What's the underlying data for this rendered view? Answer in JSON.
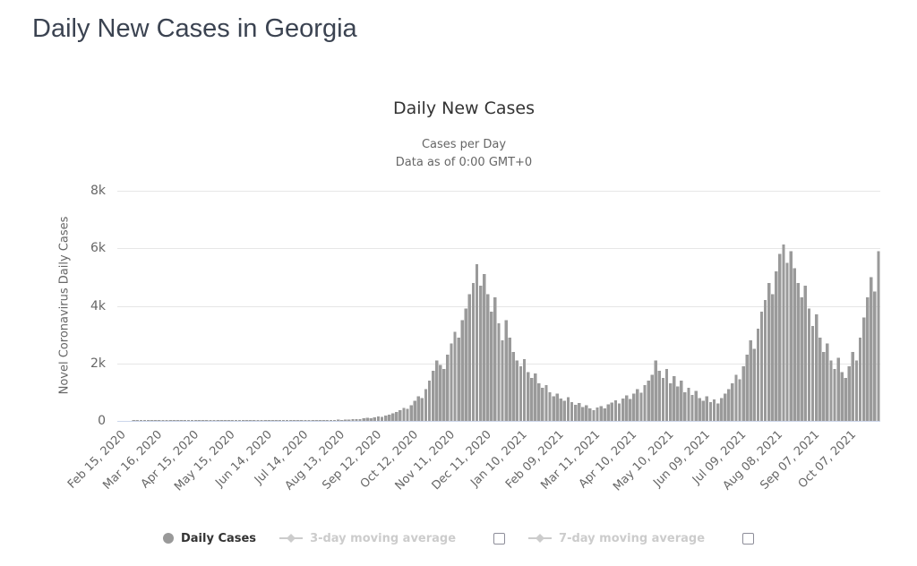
{
  "page": {
    "title": "Daily New Cases in Georgia"
  },
  "chart_data": {
    "type": "bar",
    "title": "Daily New Cases",
    "subtitle1": "Cases per Day",
    "subtitle2": "Data as of 0:00 GMT+0",
    "ylabel": "Novel Coronavirus Daily Cases",
    "series_name": "Daily Cases",
    "ylim": [
      0,
      8000
    ],
    "ytick_values": [
      0,
      2000,
      4000,
      6000,
      8000
    ],
    "ytick_labels": [
      "0",
      "2k",
      "4k",
      "6k",
      "8k"
    ],
    "x_start_date": "Feb 15, 2020",
    "sample_interval_days": 3,
    "xtick_every_n_samples": 10,
    "xtick_labels": [
      "Feb 15, 2020",
      "Mar 16, 2020",
      "Apr 15, 2020",
      "May 15, 2020",
      "Jun 14, 2020",
      "Jul 14, 2020",
      "Aug 13, 2020",
      "Sep 12, 2020",
      "Oct 12, 2020",
      "Nov 11, 2020",
      "Dec 11, 2020",
      "Jan 10, 2021",
      "Feb 09, 2021",
      "Mar 11, 2021",
      "Apr 10, 2021",
      "May 10, 2021",
      "Jun 09, 2021",
      "Jul 09, 2021",
      "Aug 08, 2021",
      "Sep 07, 2021",
      "Oct 07, 2021"
    ],
    "colors": {
      "bar": "#9a9a9a",
      "grid": "#e6e6e6",
      "axis_line": "#ccd6eb",
      "label": "#666666",
      "title": "#333333"
    },
    "values": [
      0,
      0,
      0,
      0,
      1,
      1,
      2,
      2,
      3,
      5,
      6,
      8,
      9,
      12,
      10,
      12,
      15,
      18,
      20,
      16,
      22,
      25,
      21,
      28,
      24,
      30,
      26,
      22,
      25,
      18,
      20,
      15,
      12,
      14,
      10,
      8,
      6,
      4,
      8,
      5,
      3,
      7,
      9,
      6,
      10,
      8,
      12,
      9,
      14,
      11,
      16,
      13,
      18,
      15,
      20,
      17,
      22,
      28,
      35,
      30,
      42,
      38,
      50,
      45,
      60,
      55,
      70,
      90,
      110,
      95,
      130,
      160,
      140,
      180,
      220,
      260,
      310,
      380,
      450,
      420,
      550,
      700,
      850,
      800,
      1100,
      1400,
      1750,
      2100,
      1950,
      1800,
      2300,
      2700,
      3100,
      2900,
      3500,
      3900,
      4400,
      4800,
      5450,
      4700,
      5100,
      4400,
      3800,
      4300,
      3400,
      2800,
      3500,
      2900,
      2400,
      2100,
      1900,
      2150,
      1700,
      1500,
      1650,
      1300,
      1150,
      1250,
      1000,
      850,
      950,
      780,
      700,
      820,
      650,
      560,
      620,
      480,
      540,
      430,
      380,
      460,
      520,
      440,
      580,
      640,
      720,
      610,
      780,
      880,
      760,
      950,
      1100,
      980,
      1250,
      1400,
      1600,
      2100,
      1750,
      1500,
      1800,
      1300,
      1550,
      1200,
      1400,
      1000,
      1150,
      900,
      1050,
      800,
      700,
      850,
      650,
      750,
      600,
      800,
      950,
      1100,
      1300,
      1600,
      1450,
      1900,
      2300,
      2800,
      2500,
      3200,
      3800,
      4200,
      4800,
      4400,
      5200,
      5800,
      6130,
      5500,
      5900,
      5300,
      4800,
      4300,
      4700,
      3900,
      3300,
      3700,
      2900,
      2400,
      2700,
      2100,
      1800,
      2200,
      1700,
      1500,
      1900,
      2400,
      2100,
      2900,
      3600,
      4300,
      5000,
      4500,
      5900
    ]
  },
  "legend": {
    "items": [
      {
        "label": "Daily Cases",
        "marker": "circle",
        "active": true,
        "checkbox": false
      },
      {
        "label": "3-day moving average",
        "marker": "diamond-line",
        "active": false,
        "checkbox": true
      },
      {
        "label": "7-day moving average",
        "marker": "diamond-line",
        "active": false,
        "checkbox": true
      }
    ],
    "active_color": "#333333",
    "inactive_color": "#cccccc",
    "marker_active_color": "#999999"
  }
}
